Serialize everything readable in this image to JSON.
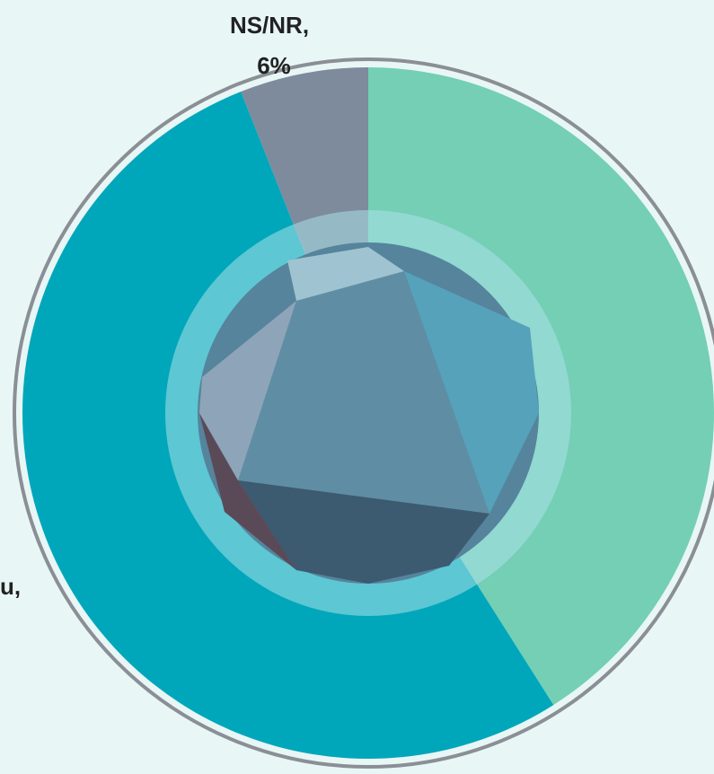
{
  "chart_data": {
    "type": "pie",
    "categories": [
      null,
      "u,",
      "NS/NR,"
    ],
    "values": [
      41,
      53,
      6
    ],
    "value_labels": [
      null,
      null,
      "6%"
    ],
    "colors": [
      "#74cfb5",
      "#00a7bb",
      "#7d8b9c"
    ]
  }
}
